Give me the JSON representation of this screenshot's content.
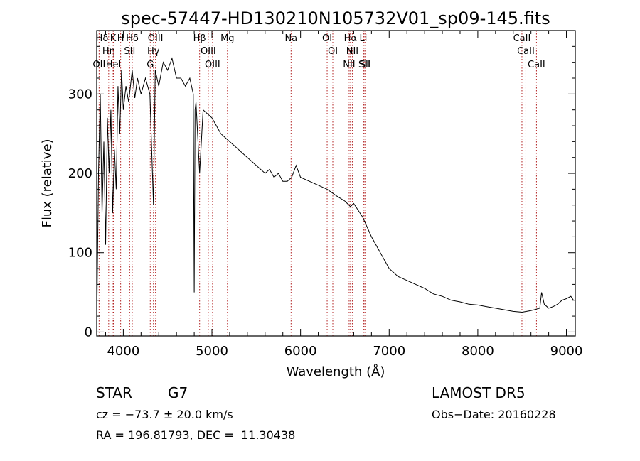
{
  "chart_data": {
    "type": "line",
    "title": "spec-57447-HD130210N105732V01_sp09-145.fits",
    "xlabel": "Wavelength (Å)",
    "ylabel": "Flux (relative)",
    "xlim": [
      3700,
      9100
    ],
    "ylim": [
      -5,
      380
    ],
    "xticks": [
      4000,
      5000,
      6000,
      7000,
      8000,
      9000
    ],
    "yticks": [
      0,
      100,
      200,
      300
    ],
    "grid": false,
    "line_color": "#000000",
    "marker_color": "#b22222",
    "series": [
      {
        "x": [
          3700,
          3720,
          3740,
          3760,
          3780,
          3800,
          3820,
          3840,
          3860,
          3880,
          3900,
          3920,
          3940,
          3960,
          3980,
          4000,
          4030,
          4060,
          4100,
          4130,
          4160,
          4200,
          4250,
          4300,
          4340,
          4360,
          4400,
          4450,
          4500,
          4550,
          4600,
          4650,
          4700,
          4750,
          4790,
          4800,
          4810,
          4820,
          4861,
          4900,
          4950,
          5000,
          5050,
          5100,
          5150,
          5200,
          5250,
          5300,
          5350,
          5400,
          5450,
          5500,
          5550,
          5600,
          5650,
          5700,
          5750,
          5800,
          5850,
          5900,
          5950,
          6000,
          6100,
          6200,
          6300,
          6400,
          6500,
          6563,
          6600,
          6700,
          6800,
          6900,
          7000,
          7100,
          7200,
          7300,
          7400,
          7500,
          7600,
          7700,
          7800,
          7900,
          8000,
          8100,
          8200,
          8300,
          8400,
          8500,
          8600,
          8700,
          8720,
          8750,
          8800,
          8850,
          8900,
          8950,
          9000,
          9050,
          9080
        ],
        "y": [
          5,
          200,
          300,
          150,
          240,
          110,
          270,
          200,
          280,
          150,
          230,
          180,
          310,
          250,
          330,
          280,
          310,
          290,
          330,
          295,
          320,
          300,
          320,
          300,
          160,
          330,
          310,
          340,
          330,
          345,
          320,
          320,
          310,
          320,
          300,
          50,
          280,
          290,
          200,
          280,
          275,
          270,
          260,
          250,
          245,
          240,
          235,
          230,
          225,
          220,
          215,
          210,
          205,
          200,
          205,
          195,
          200,
          190,
          190,
          195,
          210,
          195,
          190,
          185,
          180,
          172,
          165,
          158,
          162,
          145,
          120,
          100,
          80,
          70,
          65,
          60,
          55,
          48,
          45,
          40,
          38,
          35,
          34,
          32,
          30,
          28,
          26,
          25,
          27,
          30,
          50,
          35,
          30,
          32,
          35,
          40,
          42,
          45,
          40
        ]
      }
    ],
    "line_markers": [
      {
        "label": "Hδ",
        "x": 3760
      },
      {
        "label": "K",
        "x": 3885
      },
      {
        "label": "Hη",
        "x": 3835
      },
      {
        "label": "OII",
        "x": 3727
      },
      {
        "label": "HeI",
        "x": 3889
      },
      {
        "label": "H",
        "x": 3970
      },
      {
        "label": "SII",
        "x": 4072
      },
      {
        "label": "Hδ",
        "x": 4101
      },
      {
        "label": "OIII",
        "x": 4363
      },
      {
        "label": "Hγ",
        "x": 4340
      },
      {
        "label": "G",
        "x": 4304
      },
      {
        "label": "Hβ",
        "x": 4861
      },
      {
        "label": "OIII",
        "x": 4959
      },
      {
        "label": "OIII",
        "x": 5007
      },
      {
        "label": "Mg",
        "x": 5175
      },
      {
        "label": "Na",
        "x": 5893
      },
      {
        "label": "OI",
        "x": 6300
      },
      {
        "label": "OI",
        "x": 6364
      },
      {
        "label": "Hα",
        "x": 6563
      },
      {
        "label": "NII",
        "x": 6584
      },
      {
        "label": "NII",
        "x": 6548
      },
      {
        "label": "SII",
        "x": 6717
      },
      {
        "label": "Li",
        "x": 6708
      },
      {
        "label": "SII",
        "x": 6731
      },
      {
        "label": "CaII",
        "x": 8498
      },
      {
        "label": "CaII",
        "x": 8542
      },
      {
        "label": "CaII",
        "x": 8662
      }
    ]
  },
  "footer": {
    "object_type": "STAR",
    "subclass": "G7",
    "survey": "LAMOST DR5",
    "redshift": "cz = −73.7 ± 20.0 km/s",
    "obs_date": "Obs−Date: 20160228",
    "coords": "RA = 196.81793, DEC =  11.30438"
  }
}
